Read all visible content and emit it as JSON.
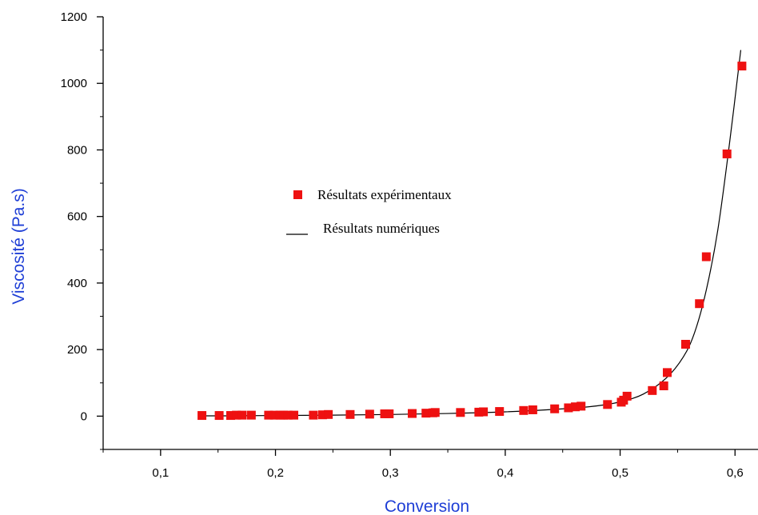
{
  "chart_data": {
    "type": "scatter",
    "title": "",
    "xlabel": "Conversion",
    "ylabel": "Viscosité (Pa.s)",
    "xlim": [
      0.05,
      0.62
    ],
    "ylim": [
      -100,
      1200
    ],
    "x_ticks": [
      0.1,
      0.2,
      0.3,
      0.4,
      0.5,
      0.6
    ],
    "x_tick_labels": [
      "0,1",
      "0,2",
      "0,3",
      "0,4",
      "0,5",
      "0,6"
    ],
    "y_ticks": [
      0,
      200,
      400,
      600,
      800,
      1000,
      1200
    ],
    "y_tick_labels": [
      "0",
      "200",
      "400",
      "600",
      "800",
      "1000",
      "1200"
    ],
    "grid": false,
    "legend_position": "center",
    "colors": {
      "markers": "#ee1111",
      "line": "#000000",
      "axis_title": "#1f3fd6"
    },
    "series": [
      {
        "name": "Résultats expérimentaux",
        "kind": "markers",
        "x": [
          0.136,
          0.151,
          0.161,
          0.166,
          0.171,
          0.179,
          0.194,
          0.199,
          0.204,
          0.207,
          0.211,
          0.216,
          0.233,
          0.241,
          0.246,
          0.265,
          0.282,
          0.295,
          0.299,
          0.319,
          0.331,
          0.337,
          0.339,
          0.361,
          0.377,
          0.381,
          0.395,
          0.416,
          0.424,
          0.443,
          0.455,
          0.461,
          0.466,
          0.489,
          0.501,
          0.503,
          0.506,
          0.528,
          0.538,
          0.541,
          0.557,
          0.569,
          0.575,
          0.593,
          0.606
        ],
        "y": [
          2,
          2,
          2,
          3,
          3,
          3,
          3,
          3,
          3,
          3,
          3,
          3,
          3,
          4,
          5,
          5,
          6,
          7,
          7,
          8,
          9,
          10,
          11,
          11,
          12,
          13,
          14,
          17,
          19,
          22,
          25,
          28,
          30,
          35,
          42,
          48,
          60,
          77,
          91,
          131,
          216,
          338,
          479,
          788,
          1052
        ]
      },
      {
        "name": "Résultats numériques",
        "kind": "line",
        "x": [
          0.136,
          0.16,
          0.2,
          0.25,
          0.3,
          0.35,
          0.4,
          0.45,
          0.48,
          0.5,
          0.52,
          0.54,
          0.555,
          0.565,
          0.575,
          0.585,
          0.595,
          0.605
        ],
        "y": [
          1,
          1,
          2,
          3,
          5,
          8,
          13,
          22,
          31,
          43,
          66,
          114,
          178,
          253,
          379,
          559,
          814,
          1100
        ]
      }
    ]
  }
}
